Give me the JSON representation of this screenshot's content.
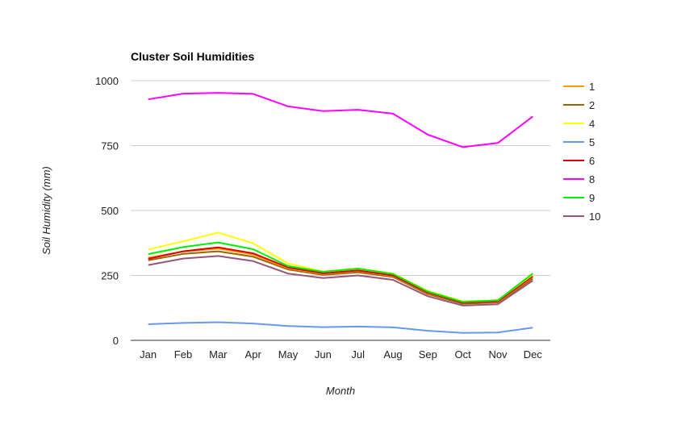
{
  "chart_data": {
    "type": "line",
    "title": "Cluster Soil Humidities",
    "xlabel": "Month",
    "ylabel": "Soil Humidity (mm)",
    "categories": [
      "Jan",
      "Feb",
      "Mar",
      "Apr",
      "May",
      "Jun",
      "Jul",
      "Aug",
      "Sep",
      "Oct",
      "Nov",
      "Dec"
    ],
    "ylim": [
      0,
      1000
    ],
    "yticks": [
      "0",
      "250",
      "500",
      "750",
      "1000"
    ],
    "grid": true,
    "legend_position": "right",
    "series": [
      {
        "name": "1",
        "color": "#ff9900",
        "values": [
          318,
          342,
          353,
          330,
          278,
          256,
          267,
          248,
          182,
          145,
          148,
          245
        ]
      },
      {
        "name": "2",
        "color": "#996600",
        "values": [
          308,
          333,
          343,
          322,
          273,
          252,
          262,
          244,
          178,
          141,
          146,
          238
        ]
      },
      {
        "name": "4",
        "color": "#ffff00",
        "values": [
          350,
          381,
          415,
          374,
          296,
          265,
          277,
          257,
          190,
          150,
          155,
          253
        ]
      },
      {
        "name": "5",
        "color": "#6699ee",
        "values": [
          62,
          67,
          70,
          65,
          55,
          51,
          53,
          50,
          37,
          29,
          30,
          49
        ]
      },
      {
        "name": "6",
        "color": "#dd0000",
        "values": [
          314,
          343,
          358,
          335,
          281,
          258,
          269,
          250,
          184,
          145,
          150,
          247
        ]
      },
      {
        "name": "8",
        "color": "#ff00ff",
        "values": [
          928,
          950,
          953,
          949,
          901,
          883,
          888,
          873,
          792,
          744,
          760,
          862
        ]
      },
      {
        "name": "9",
        "color": "#00ee00",
        "values": [
          332,
          359,
          377,
          351,
          286,
          264,
          276,
          256,
          188,
          148,
          154,
          257
        ]
      },
      {
        "name": "10",
        "color": "#995577",
        "values": [
          290,
          315,
          325,
          305,
          257,
          240,
          250,
          233,
          170,
          134,
          139,
          230
        ]
      }
    ]
  }
}
